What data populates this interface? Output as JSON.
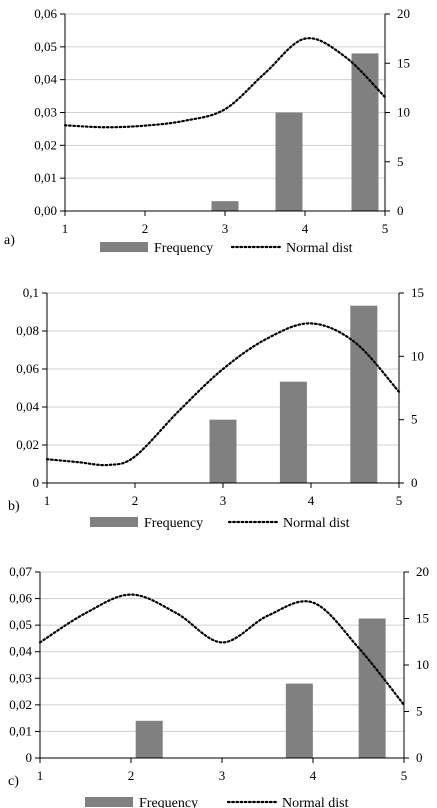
{
  "chart_data": [
    {
      "type": "bar",
      "panel_label": "a)",
      "x_ticks": [
        "1",
        "2",
        "3",
        "4",
        "5"
      ],
      "xlim": [
        1,
        5
      ],
      "y_left": {
        "ticks": [
          "0,00",
          "0,01",
          "0,02",
          "0,03",
          "0,04",
          "0,05",
          "0,06"
        ],
        "lim": [
          0,
          0.06
        ]
      },
      "y_right": {
        "ticks": [
          "0",
          "5",
          "10",
          "15",
          "20"
        ],
        "lim": [
          0,
          20
        ]
      },
      "bar_color": "#808080",
      "series": [
        {
          "name": "Frequency",
          "kind": "bar",
          "axis": "right",
          "x": [
            3,
            3.8,
            4.75
          ],
          "y": [
            1,
            10,
            16
          ]
        },
        {
          "name": "Normal dist",
          "kind": "line",
          "style": "dotted",
          "axis": "left",
          "x": [
            1,
            1.5,
            2,
            2.5,
            3,
            3.5,
            4,
            4.5,
            5
          ],
          "y": [
            0.0261,
            0.0255,
            0.026,
            0.0275,
            0.031,
            0.042,
            0.0525,
            0.047,
            0.0347
          ]
        }
      ],
      "legend": {
        "position": "bottom"
      }
    },
    {
      "type": "bar",
      "panel_label": "b)",
      "x_ticks": [
        "1",
        "2",
        "3",
        "4",
        "5"
      ],
      "xlim": [
        1,
        5
      ],
      "y_left": {
        "ticks": [
          "0",
          "0,02",
          "0,04",
          "0,06",
          "0,08",
          "0,1"
        ],
        "lim": [
          0,
          0.1
        ]
      },
      "y_right": {
        "ticks": [
          "0",
          "5",
          "10",
          "15"
        ],
        "lim": [
          0,
          15
        ]
      },
      "bar_color": "#808080",
      "series": [
        {
          "name": "Frequency",
          "kind": "bar",
          "axis": "right",
          "x": [
            3,
            3.8,
            4.6
          ],
          "y": [
            5,
            8,
            14
          ]
        },
        {
          "name": "Normal dist",
          "kind": "line",
          "style": "dotted",
          "axis": "left",
          "x": [
            1,
            1.35,
            1.7,
            2,
            2.5,
            3,
            3.5,
            4,
            4.5,
            5
          ],
          "y": [
            0.0125,
            0.011,
            0.0095,
            0.014,
            0.038,
            0.06,
            0.076,
            0.084,
            0.074,
            0.048
          ]
        }
      ],
      "legend": {
        "position": "bottom"
      }
    },
    {
      "type": "bar",
      "panel_label": "c)",
      "x_ticks": [
        "1",
        "2",
        "3",
        "4",
        "5"
      ],
      "xlim": [
        1,
        5
      ],
      "y_left": {
        "ticks": [
          "0",
          "0,01",
          "0,02",
          "0,03",
          "0,04",
          "0,05",
          "0,06",
          "0,07"
        ],
        "lim": [
          0,
          0.07
        ]
      },
      "y_right": {
        "ticks": [
          "0",
          "5",
          "10",
          "15",
          "20"
        ],
        "lim": [
          0,
          20
        ]
      },
      "bar_color": "#808080",
      "series": [
        {
          "name": "Frequency",
          "kind": "bar",
          "axis": "right",
          "x": [
            2.2,
            3.85,
            4.65
          ],
          "y": [
            4,
            8,
            15
          ]
        },
        {
          "name": "Normal dist",
          "kind": "line",
          "style": "dotted",
          "axis": "left",
          "x": [
            1,
            1.5,
            2,
            2.5,
            3,
            3.5,
            4,
            4.5,
            5
          ],
          "y": [
            0.0435,
            0.0545,
            0.0615,
            0.0545,
            0.0435,
            0.0535,
            0.0585,
            0.0415,
            0.02
          ]
        }
      ],
      "legend": {
        "position": "bottom"
      }
    }
  ]
}
